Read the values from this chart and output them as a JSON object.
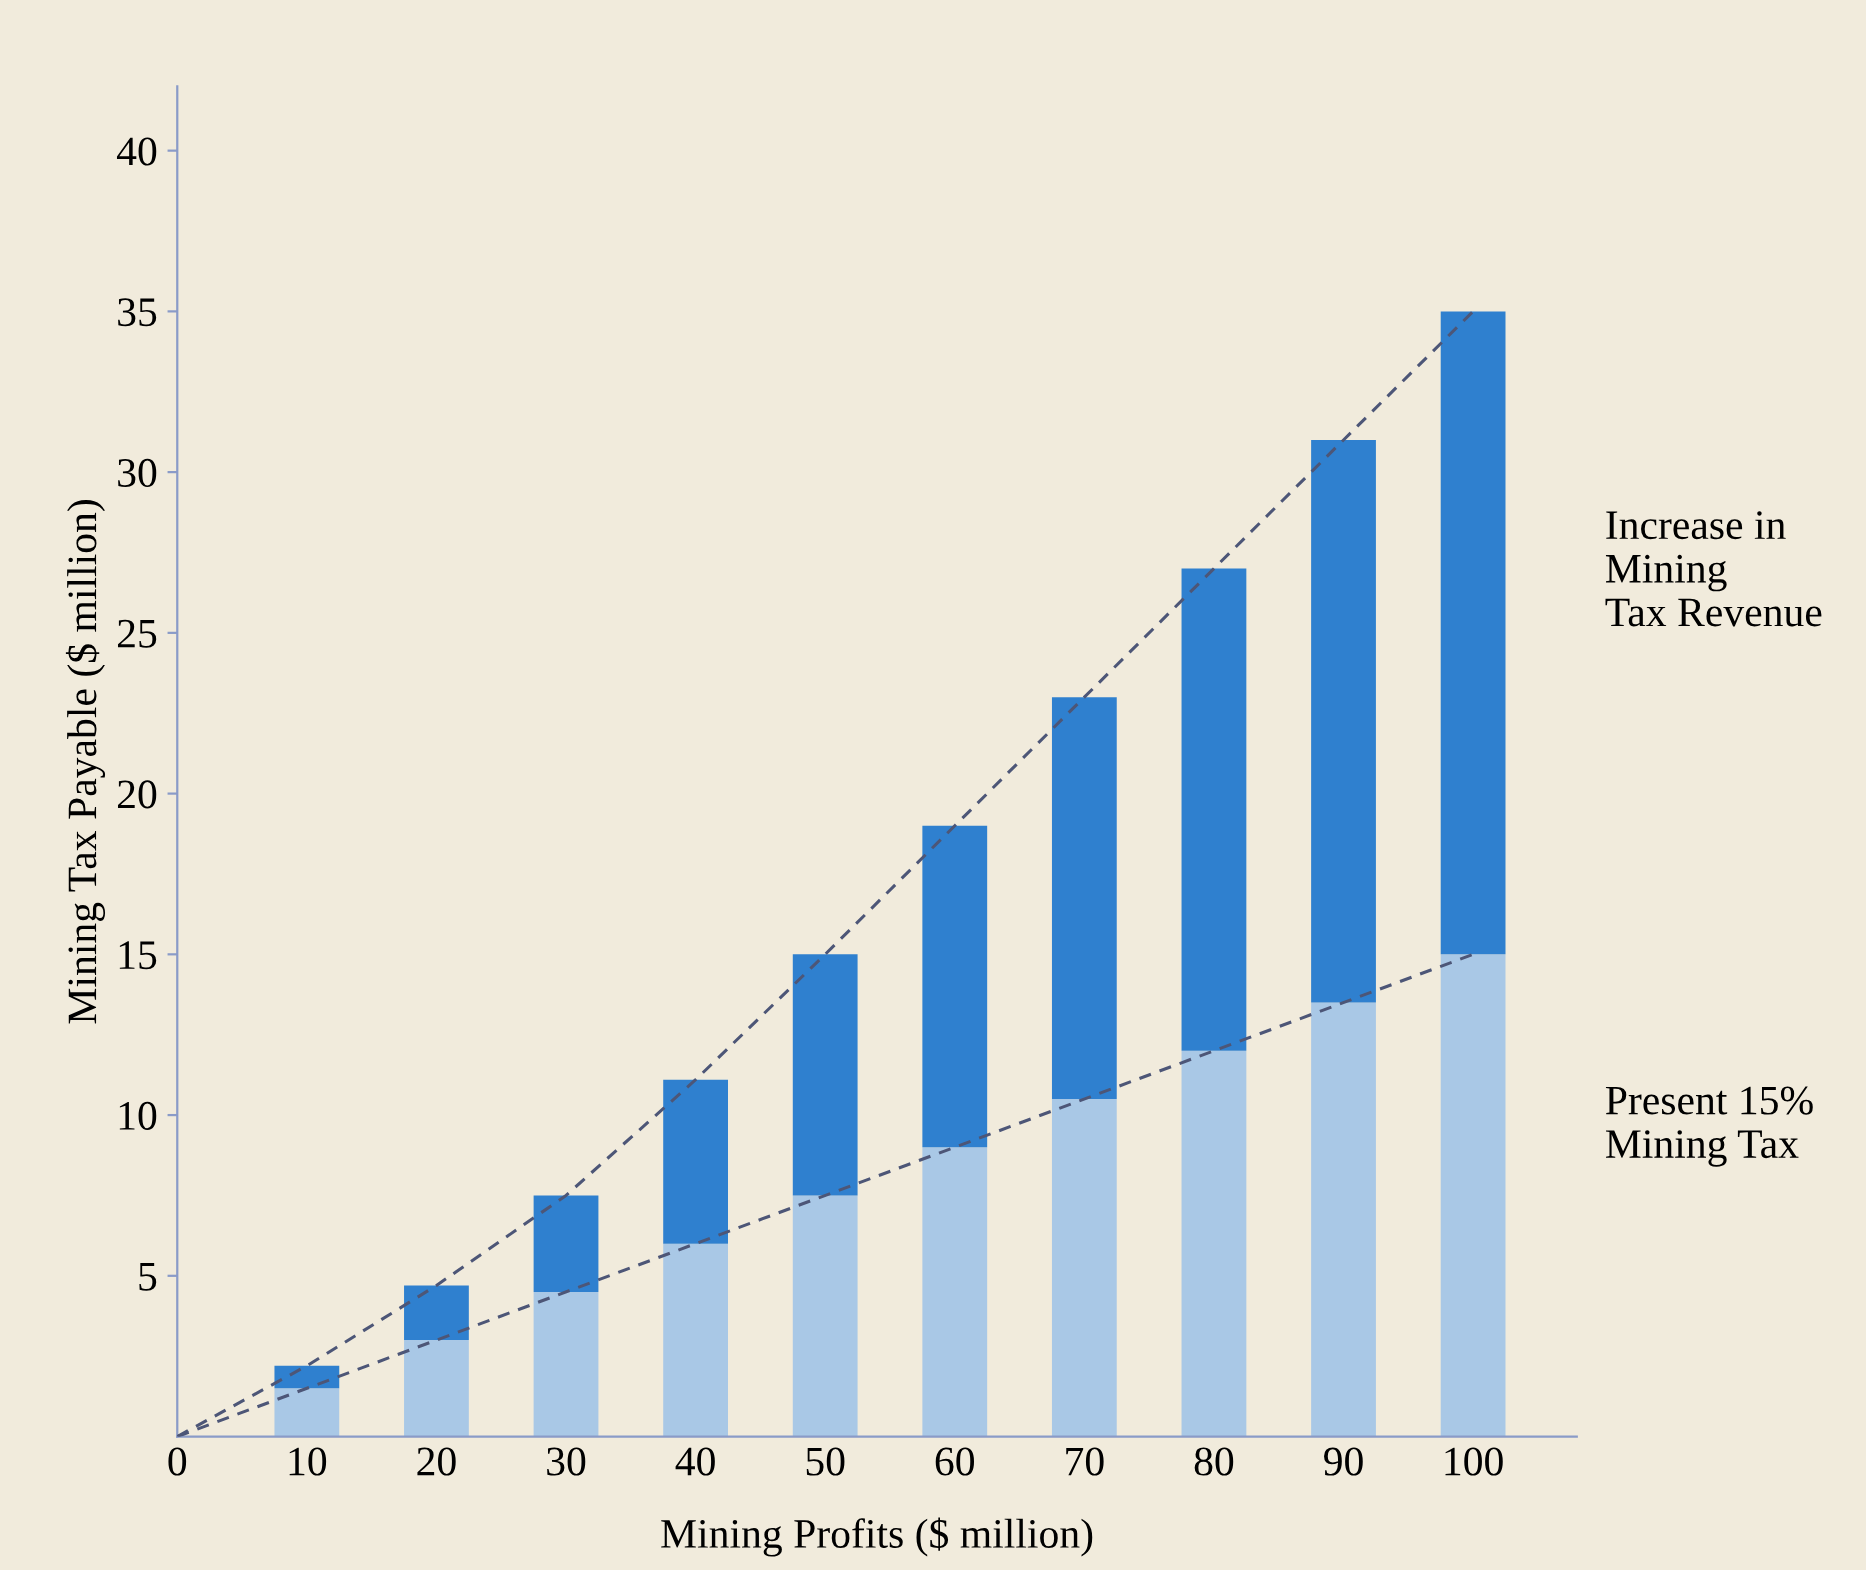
{
  "chart_data": {
    "type": "bar",
    "stacked": true,
    "xlabel": "Mining Profits ($ million)",
    "ylabel": "Mining Tax Payable ($ million)",
    "x": [
      10,
      20,
      30,
      40,
      50,
      60,
      70,
      80,
      90,
      100
    ],
    "series": [
      {
        "color": "#a9c8e6",
        "values": [
          1.5,
          3,
          4.5,
          6,
          7.5,
          9,
          10.5,
          12,
          13.5,
          15
        ]
      },
      {
        "color": "#2f80cf",
        "values": [
          0.7,
          1.7,
          3.0,
          5.1,
          7.5,
          10,
          12.5,
          15,
          17.5,
          20
        ]
      },
      {
        "type": "line",
        "color": "#4d5677",
        "line_style": "dashed",
        "marker": "none",
        "x": [
          0,
          100
        ],
        "values": [
          0,
          15
        ]
      },
      {
        "type": "line",
        "color": "#4d5677",
        "line_style": "dashed",
        "marker": "none",
        "x": [
          0,
          10,
          20,
          30,
          40,
          50,
          60,
          70,
          80,
          90,
          100
        ],
        "values": [
          0,
          2.2,
          4.7,
          7.5,
          11.1,
          15,
          19,
          23,
          27,
          31,
          35
        ]
      }
    ],
    "annotations": [
      "Increase in\nMining\nTax Revenue",
      "Present 15%\nMining Tax"
    ],
    "xlim": [
      0,
      108
    ],
    "xticks": [
      0,
      10,
      20,
      30,
      40,
      50,
      60,
      70,
      80,
      90,
      100
    ],
    "ylim": [
      0,
      42
    ],
    "yticks": [
      5,
      10,
      15,
      20,
      25,
      30,
      35,
      40
    ],
    "grid": false
  }
}
